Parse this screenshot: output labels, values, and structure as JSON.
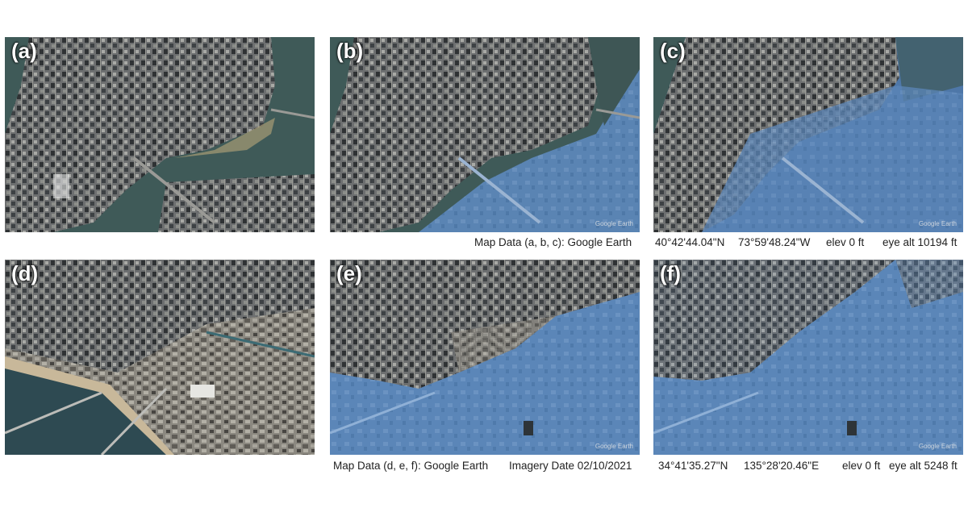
{
  "panels": {
    "a": {
      "label": "(a)"
    },
    "b": {
      "label": "(b)"
    },
    "c": {
      "label": "(c)"
    },
    "d": {
      "label": "(d)"
    },
    "e": {
      "label": "(e)"
    },
    "f": {
      "label": "(f)"
    }
  },
  "watermark": "Google Earth",
  "captions": {
    "top": {
      "source": "Map Data (a, b, c): Google Earth",
      "lat": "40°42'44.04\"N",
      "lon": "73°59'48.24\"W",
      "elev": "elev 0 ft",
      "eye_alt": "eye alt 10194 ft"
    },
    "bottom": {
      "source": "Map Data (d, e, f): Google Earth",
      "imagery_date": "Imagery Date 02/10/2021",
      "lat": "34°41'35.27\"N",
      "lon": "135°28'20.46\"E",
      "elev": "elev 0 ft",
      "eye_alt": "eye alt 5248 ft"
    }
  },
  "colors": {
    "river": "#3f5a58",
    "flood": "#5b86b8",
    "city_dark": "#3a3d40",
    "city_light": "#8a8a84"
  }
}
